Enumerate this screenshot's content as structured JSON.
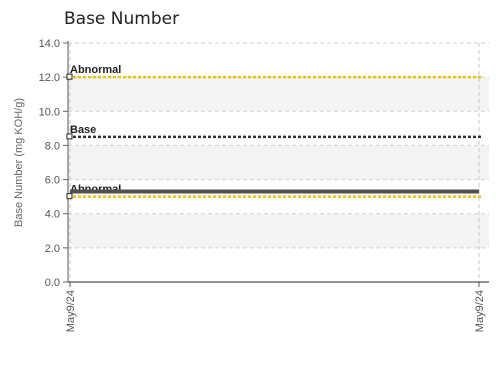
{
  "chart_data": {
    "type": "line",
    "title": "Base Number",
    "ylabel": "Base Number (mg KOH/g)",
    "xlabel": "",
    "ylim": [
      0,
      14
    ],
    "yticks": [
      "0.0",
      "2.0",
      "4.0",
      "6.0",
      "8.0",
      "10.0",
      "12.0",
      "14.0"
    ],
    "x": [
      "May9/24",
      "May9/24"
    ],
    "grid": true,
    "reference_lines": [
      {
        "label": "Abnormal",
        "value": 12.0,
        "color": "#f2c200",
        "style": "dashed"
      },
      {
        "label": "Base",
        "value": 8.5,
        "color": "#333333",
        "style": "dashed"
      },
      {
        "label": "Abnormal",
        "value": 5.0,
        "color": "#f2c200",
        "style": "dashed"
      }
    ],
    "series": [
      {
        "values": [
          5.3,
          5.3
        ],
        "color": "#505050"
      }
    ]
  }
}
